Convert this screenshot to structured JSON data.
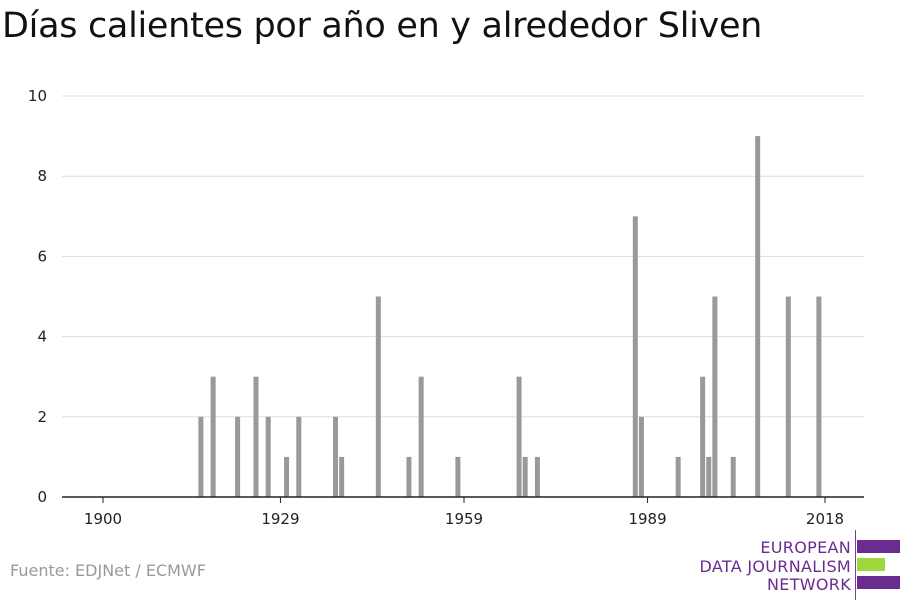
{
  "title": "Días calientes por año en y alrededor Sliven",
  "source": "Fuente: EDJNet / ECMWF",
  "logo": {
    "line1": "EUROPEAN",
    "line2": "DATA JOURNALISM",
    "line3": "NETWORK",
    "colors": {
      "purple": "#6a2c91",
      "green": "#9ed83b"
    }
  },
  "chart_data": {
    "type": "bar",
    "title": "Días calientes por año en y alrededor Sliven",
    "xlabel": "",
    "ylabel": "",
    "xlim": [
      1900,
      2018
    ],
    "ylim": [
      0,
      10
    ],
    "x_ticks": [
      1900,
      1929,
      1959,
      1989,
      2018
    ],
    "y_ticks": [
      0,
      2,
      4,
      6,
      8,
      10
    ],
    "grid": true,
    "bar_color": "#999999",
    "x": [
      1916,
      1918,
      1922,
      1925,
      1927,
      1930,
      1932,
      1938,
      1939,
      1945,
      1950,
      1952,
      1958,
      1968,
      1969,
      1971,
      1987,
      1988,
      1994,
      1998,
      1999,
      2000,
      2003,
      2007,
      2012,
      2017
    ],
    "values": [
      2,
      3,
      2,
      3,
      2,
      1,
      2,
      2,
      1,
      5,
      1,
      3,
      1,
      3,
      1,
      1,
      7,
      2,
      1,
      3,
      1,
      5,
      1,
      9,
      5,
      5
    ]
  }
}
